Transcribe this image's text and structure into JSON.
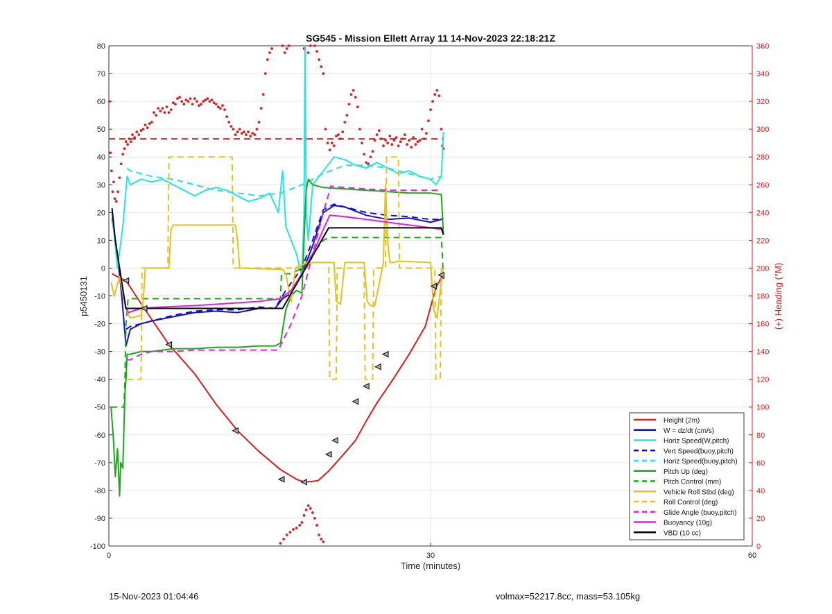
{
  "chart_data": {
    "type": "line",
    "title": "SG545 - Mission Ellett Array 11 14-Nov-2023 22:18:21Z",
    "xlabel": "Time (minutes)",
    "ylabel_left": "p5450131",
    "ylabel_right": "(+) Heading (°M)",
    "xlim": [
      0,
      60
    ],
    "ylim_left": [
      -100,
      80
    ],
    "ylim_right": [
      0,
      360
    ],
    "x_ticks": [
      0,
      30,
      60
    ],
    "y_ticks_left": [
      80,
      70,
      60,
      50,
      40,
      30,
      20,
      10,
      0,
      -10,
      -20,
      -30,
      -40,
      -50,
      -60,
      -70,
      -80,
      -90,
      -100
    ],
    "y_ticks_right": [
      360,
      340,
      320,
      300,
      280,
      260,
      240,
      220,
      200,
      180,
      160,
      140,
      120,
      100,
      80,
      60,
      40,
      20,
      0
    ],
    "grid": true,
    "legend_position": "bottom-right",
    "colors": {
      "red": "#d81b1b",
      "blue": "#1010c8",
      "cyan": "#22e4e4",
      "green": "#18a818",
      "yellow": "#e3c21a",
      "magenta": "#e21ee2",
      "black": "#000000",
      "heading_red": "#e02020"
    },
    "series": [
      {
        "name": "Height (2m)",
        "color": "red",
        "style": "solid",
        "x": [
          0.3,
          1.0,
          1.6,
          3.3,
          5.6,
          8.0,
          10.0,
          12.0,
          14.0,
          16.0,
          17.5,
          18.3,
          19.5,
          20.5,
          22.0,
          23.0,
          24.0,
          25.0,
          26.5,
          28.0,
          29.5,
          30.5,
          31.2
        ],
        "y": [
          -2.0,
          -3.5,
          -4.5,
          -14.5,
          -27.5,
          -38.0,
          -49.0,
          -58.5,
          -66.0,
          -72.5,
          -76.0,
          -77.0,
          -76.5,
          -73.0,
          -66.5,
          -62.0,
          -55.0,
          -48.5,
          -40.0,
          -31.0,
          -21.0,
          -7.0,
          -2.0
        ]
      },
      {
        "name": "W = dz/dt (cm/s)",
        "color": "blue",
        "style": "solid",
        "x": [
          0.3,
          0.8,
          1.2,
          1.6,
          2.0,
          3.0,
          4.0,
          6.0,
          8.0,
          10.0,
          12.0,
          14.0,
          15.5,
          16.2,
          17.0,
          18.0,
          19.0,
          20.0,
          21.0,
          22.0,
          24.0,
          26.0,
          28.0,
          30.0,
          31.0,
          31.2
        ],
        "y": [
          18,
          5,
          -10,
          -28,
          -22,
          -20,
          -19,
          -17.5,
          -16,
          -15.5,
          -16,
          -14.5,
          -14.5,
          -11,
          -9,
          -2,
          8,
          20,
          22.5,
          22,
          19,
          17.5,
          18,
          16.5,
          17.5,
          18
        ]
      },
      {
        "name": "Horiz Speed(W,pitch)",
        "color": "cyan",
        "style": "solid",
        "x": [
          0.3,
          0.8,
          1.3,
          1.7,
          2.0,
          3.0,
          4.0,
          5.0,
          6.0,
          7.0,
          8.0,
          9.0,
          10.0,
          11.0,
          12.0,
          13.0,
          14.0,
          15.0,
          15.8,
          16.2,
          16.5,
          17.0,
          17.5,
          18.0,
          18.2,
          18.3,
          18.4,
          18.6,
          19.0,
          20.0,
          21.0,
          22.0,
          23.0,
          24.0,
          25.0,
          26.0,
          27.0,
          28.0,
          29.0,
          30.0,
          30.5,
          31.0,
          31.2
        ],
        "y": [
          20,
          0,
          15,
          33,
          30,
          32,
          31,
          32,
          30,
          28,
          26,
          28,
          29,
          28,
          26,
          24,
          25,
          27,
          20,
          35,
          15,
          10,
          5,
          -3,
          20,
          80,
          20,
          10,
          30,
          35,
          40,
          39,
          37,
          36,
          38,
          36,
          34,
          35,
          33,
          32,
          30,
          33,
          49
        ]
      },
      {
        "name": "Vert Speed(buoy,pitch)",
        "color": "blue",
        "style": "dashed",
        "x": [
          1.6,
          2.0,
          3.0,
          4.0,
          6.0,
          8.0,
          10.0,
          12.0,
          14.0,
          15.5,
          16.5,
          18.0,
          19.0,
          20.0,
          21.0,
          22.0,
          24.0,
          26.0,
          28.0,
          30.0,
          31.0
        ],
        "y": [
          -22,
          -21,
          -20,
          -19,
          -17,
          -15.5,
          -15,
          -15,
          -14,
          -14.5,
          -8,
          0,
          10,
          21,
          23,
          22,
          20,
          19,
          18.5,
          17.5,
          17.5
        ]
      },
      {
        "name": "Horiz Speed(buoy,pitch)",
        "color": "cyan",
        "style": "dashed",
        "x": [
          1.7,
          2.0,
          4.0,
          6.0,
          8.0,
          10.0,
          12.0,
          14.0,
          16.0,
          18.0,
          20.0,
          22.0,
          24.0,
          26.0,
          28.0,
          30.0,
          31.0
        ],
        "y": [
          36,
          35,
          33,
          32,
          30,
          28,
          27,
          26,
          27,
          30,
          34,
          37,
          37,
          36,
          34,
          32,
          33
        ]
      },
      {
        "name": "Pitch Up (deg)",
        "color": "green",
        "style": "solid",
        "x": [
          0.2,
          0.4,
          0.6,
          0.8,
          1.0,
          1.1,
          1.3,
          1.5,
          1.6,
          1.7,
          2.0,
          3.0,
          4.0,
          6.0,
          8.0,
          10.0,
          12.0,
          14.0,
          15.5,
          16.0,
          16.5,
          17.0,
          17.5,
          18.0,
          18.2,
          18.4,
          18.6,
          19.0,
          20.0,
          22.0,
          24.0,
          26.0,
          28.0,
          30.0,
          31.0,
          31.2
        ],
        "y": [
          -50,
          -60,
          -75,
          -65,
          -82,
          -70,
          -72,
          -45,
          -40,
          -31,
          -31,
          -30,
          -30,
          -29,
          -29,
          -28.5,
          -28.5,
          -28,
          -28,
          -27,
          -15,
          -10,
          -8,
          -9,
          10,
          28,
          32,
          30,
          29,
          28.5,
          28,
          27.5,
          27,
          27,
          26.5,
          12
        ]
      },
      {
        "name": "Pitch Control (mm)",
        "color": "green",
        "style": "dashed",
        "x": [
          0.2,
          1.4,
          1.5,
          1.6,
          1.8,
          15.6,
          16.0,
          16.1,
          17.0,
          18.0,
          20.0,
          20.5,
          31.0,
          31.1,
          31.2
        ],
        "y": [
          -50,
          -50,
          -40,
          -20,
          -11,
          -11,
          -11,
          -2,
          -2,
          0,
          10,
          11,
          11,
          5,
          -5
        ]
      },
      {
        "name": "Vehicle Roll Stbd (deg)",
        "color": "yellow",
        "style": "solid",
        "x": [
          0.2,
          0.5,
          1.0,
          1.6,
          2.0,
          3.0,
          3.2,
          3.4,
          5.6,
          5.8,
          6.0,
          11.8,
          12.0,
          12.2,
          16.2,
          16.5,
          17.0,
          17.4,
          18.5,
          19.0,
          21.0,
          21.2,
          21.6,
          22.0,
          23.0,
          23.8,
          24.1,
          24.4,
          24.8,
          25.6,
          25.8,
          26.0,
          26.2,
          26.5,
          27.0,
          30.0,
          30.3,
          30.6,
          31.0,
          31.2
        ],
        "y": [
          -5,
          -10,
          -3,
          -15,
          -18,
          -17,
          -12,
          0,
          0,
          14,
          15.5,
          15.5,
          10,
          0,
          -0.5,
          -2,
          -12,
          0,
          2,
          2,
          2,
          -12,
          -13,
          2,
          2,
          2,
          -12,
          -13.5,
          -13.5,
          2,
          30,
          10,
          2,
          2,
          2.5,
          2,
          -15,
          -18,
          -5,
          0
        ]
      },
      {
        "name": "Roll Control (deg)",
        "color": "yellow",
        "style": "dashed",
        "x": [
          1.7,
          2.0,
          3.0,
          3.1,
          5.5,
          5.6,
          11.5,
          11.6,
          18.5,
          18.6,
          20.5,
          20.6,
          21.2,
          21.3,
          23.8,
          23.9,
          24.6,
          24.7,
          25.8,
          25.9,
          27.0,
          27.1,
          30.4,
          30.5,
          30.9,
          31.0
        ],
        "y": [
          -40,
          -40,
          -40,
          0,
          0,
          40,
          40,
          0,
          0,
          2,
          2,
          -40,
          -40,
          0,
          0,
          -40,
          -40,
          0,
          0,
          40,
          40,
          0,
          0,
          -40,
          -40,
          0
        ]
      },
      {
        "name": "Glide Angle (buoy,pitch)",
        "color": "magenta",
        "style": "dashed",
        "x": [
          1.7,
          2.0,
          3.0,
          4.0,
          6.0,
          8.0,
          10.0,
          12.0,
          14.0,
          15.8,
          17.0,
          18.0,
          19.0,
          20.0,
          20.7,
          22.0,
          24.0,
          26.0,
          28.0,
          30.0,
          31.0
        ],
        "y": [
          -33,
          -33,
          -31,
          -30,
          -30,
          -29.5,
          -29.5,
          -29.5,
          -29.5,
          -29.5,
          -20,
          -10,
          5,
          20,
          29.5,
          29,
          28.5,
          28,
          28,
          28,
          28
        ]
      },
      {
        "name": "Buoyancy (10g)",
        "color": "magenta",
        "style": "solid",
        "x": [
          1.6,
          1.8,
          3.0,
          5.0,
          8.0,
          10.0,
          12.0,
          14.0,
          16.0,
          17.0,
          18.0,
          19.0,
          20.0,
          20.6,
          22.0,
          24.0,
          26.0,
          28.0,
          30.0,
          31.0
        ],
        "y": [
          -14,
          -16,
          -14.5,
          -14,
          -13.5,
          -13,
          -12.5,
          -12,
          -11,
          -8,
          -2,
          5,
          14,
          19,
          18.5,
          17.5,
          16.5,
          15.5,
          14.5,
          14
        ]
      },
      {
        "name": "VBD (10 cc)",
        "color": "black",
        "style": "solid",
        "x": [
          0.3,
          0.6,
          1.0,
          1.4,
          1.6,
          16.0,
          16.2,
          20.5,
          31.0,
          31.2
        ],
        "y": [
          21.5,
          10,
          0,
          -10,
          -14.5,
          -14.5,
          -14.5,
          14.5,
          14.5,
          12
        ]
      }
    ],
    "height_markers": {
      "x": [
        1.6,
        3.3,
        5.6,
        11.8,
        16.1,
        18.2,
        20.5,
        21.1,
        23.0,
        24.0,
        25.1,
        25.8,
        30.3,
        31.0
      ],
      "y": [
        -4.5,
        -14.5,
        -27.5,
        -58.5,
        -76,
        -77,
        -67,
        -62,
        -48,
        -42.5,
        -35.5,
        -31,
        -6.5,
        -2.5
      ]
    },
    "heading": {
      "target": 293,
      "x": [
        0.05,
        0.15,
        0.25,
        0.35,
        0.45,
        0.55,
        0.7,
        0.85,
        1.0,
        1.15,
        1.3,
        1.45,
        1.6,
        1.75,
        1.9,
        2.05,
        2.2,
        2.4,
        2.6,
        2.8,
        3.0,
        3.2,
        3.4,
        3.6,
        3.8,
        4.0,
        4.2,
        4.4,
        4.6,
        4.8,
        5.0,
        5.2,
        5.4,
        5.6,
        5.8,
        6.0,
        6.2,
        6.4,
        6.6,
        6.8,
        7.0,
        7.2,
        7.4,
        7.6,
        7.8,
        8.0,
        8.2,
        8.4,
        8.6,
        8.8,
        9.0,
        9.2,
        9.4,
        9.6,
        9.8,
        10.0,
        10.2,
        10.4,
        10.6,
        10.8,
        11.0,
        11.2,
        11.4,
        11.6,
        11.8,
        12.0,
        12.2,
        12.4,
        12.6,
        12.8,
        13.0,
        13.2,
        13.4,
        13.6,
        13.8,
        14.0,
        14.2,
        14.4,
        14.6,
        14.8,
        15.0,
        15.2,
        15.4,
        15.6,
        15.8,
        16.0,
        16.2,
        16.4,
        16.6,
        16.8,
        17.0,
        17.2,
        17.4,
        17.6,
        17.8,
        18.0,
        18.2,
        18.4,
        18.6,
        18.8,
        19.0,
        19.2,
        19.4,
        19.6,
        19.8,
        20.0,
        20.2,
        20.4,
        20.6,
        20.8,
        21.0,
        21.2,
        21.4,
        21.6,
        21.8,
        22.0,
        22.2,
        22.4,
        22.6,
        22.8,
        23.0,
        23.2,
        23.4,
        23.6,
        23.8,
        24.0,
        24.2,
        24.4,
        24.6,
        24.8,
        25.0,
        25.2,
        25.4,
        25.6,
        25.8,
        26.0,
        26.2,
        26.4,
        26.6,
        26.8,
        27.0,
        27.2,
        27.4,
        27.6,
        27.8,
        28.0,
        28.2,
        28.4,
        28.6,
        28.8,
        29.0,
        29.2,
        29.4,
        29.6,
        29.8,
        30.0,
        30.2,
        30.4,
        30.6,
        30.8,
        31.0,
        31.1,
        31.2
      ],
      "y": [
        320,
        283,
        270,
        255,
        262,
        250,
        248,
        255,
        265,
        275,
        282,
        286,
        291,
        289,
        293,
        291,
        296,
        294,
        298,
        296,
        299,
        300,
        303,
        301,
        304,
        305,
        312,
        310,
        315,
        313,
        315,
        312,
        316,
        312,
        314,
        319,
        318,
        322,
        323,
        320,
        318,
        321,
        320,
        322,
        318,
        322,
        320,
        317,
        318,
        320,
        321,
        322,
        320,
        321,
        319,
        318,
        316,
        315,
        317,
        314,
        309,
        305,
        302,
        300,
        296,
        298,
        300,
        297,
        298,
        296,
        298,
        295,
        297,
        296,
        300,
        305,
        315,
        325,
        340,
        350,
        355,
        358,
        362,
        364,
        366,
        365,
        360,
        355,
        358,
        360,
        365,
        370,
        372,
        368,
        365,
        362,
        358,
        364,
        355,
        360,
        362,
        360,
        356,
        350,
        345,
        340,
        300,
        290,
        285,
        290,
        288,
        295,
        296,
        293,
        298,
        305,
        310,
        318,
        325,
        328,
        323,
        316,
        300,
        290,
        282,
        276,
        275,
        280,
        284,
        292,
        296,
        299,
        293,
        288,
        292,
        290,
        295,
        289,
        292,
        294,
        288,
        291,
        293,
        296,
        289,
        292,
        287,
        294,
        289,
        291,
        292,
        300,
        293,
        297,
        306,
        314,
        320,
        325,
        328,
        324,
        300,
        288,
        286
      ]
    },
    "heading_low": {
      "x": [
        16.0,
        16.3,
        16.6,
        16.9,
        17.2,
        17.5,
        17.8,
        18.0,
        18.2,
        18.4,
        18.6,
        18.8,
        19.0,
        19.2,
        19.4,
        19.6,
        19.8,
        20.0
      ],
      "y": [
        2,
        5,
        8,
        10,
        12,
        13,
        15,
        17,
        22,
        26,
        29,
        27,
        24,
        20,
        15,
        8,
        5,
        3
      ]
    }
  },
  "footer": {
    "left": "15-Nov-2023 01:04:46",
    "right": "volmax=52217.8cc, mass=53.105kg"
  }
}
